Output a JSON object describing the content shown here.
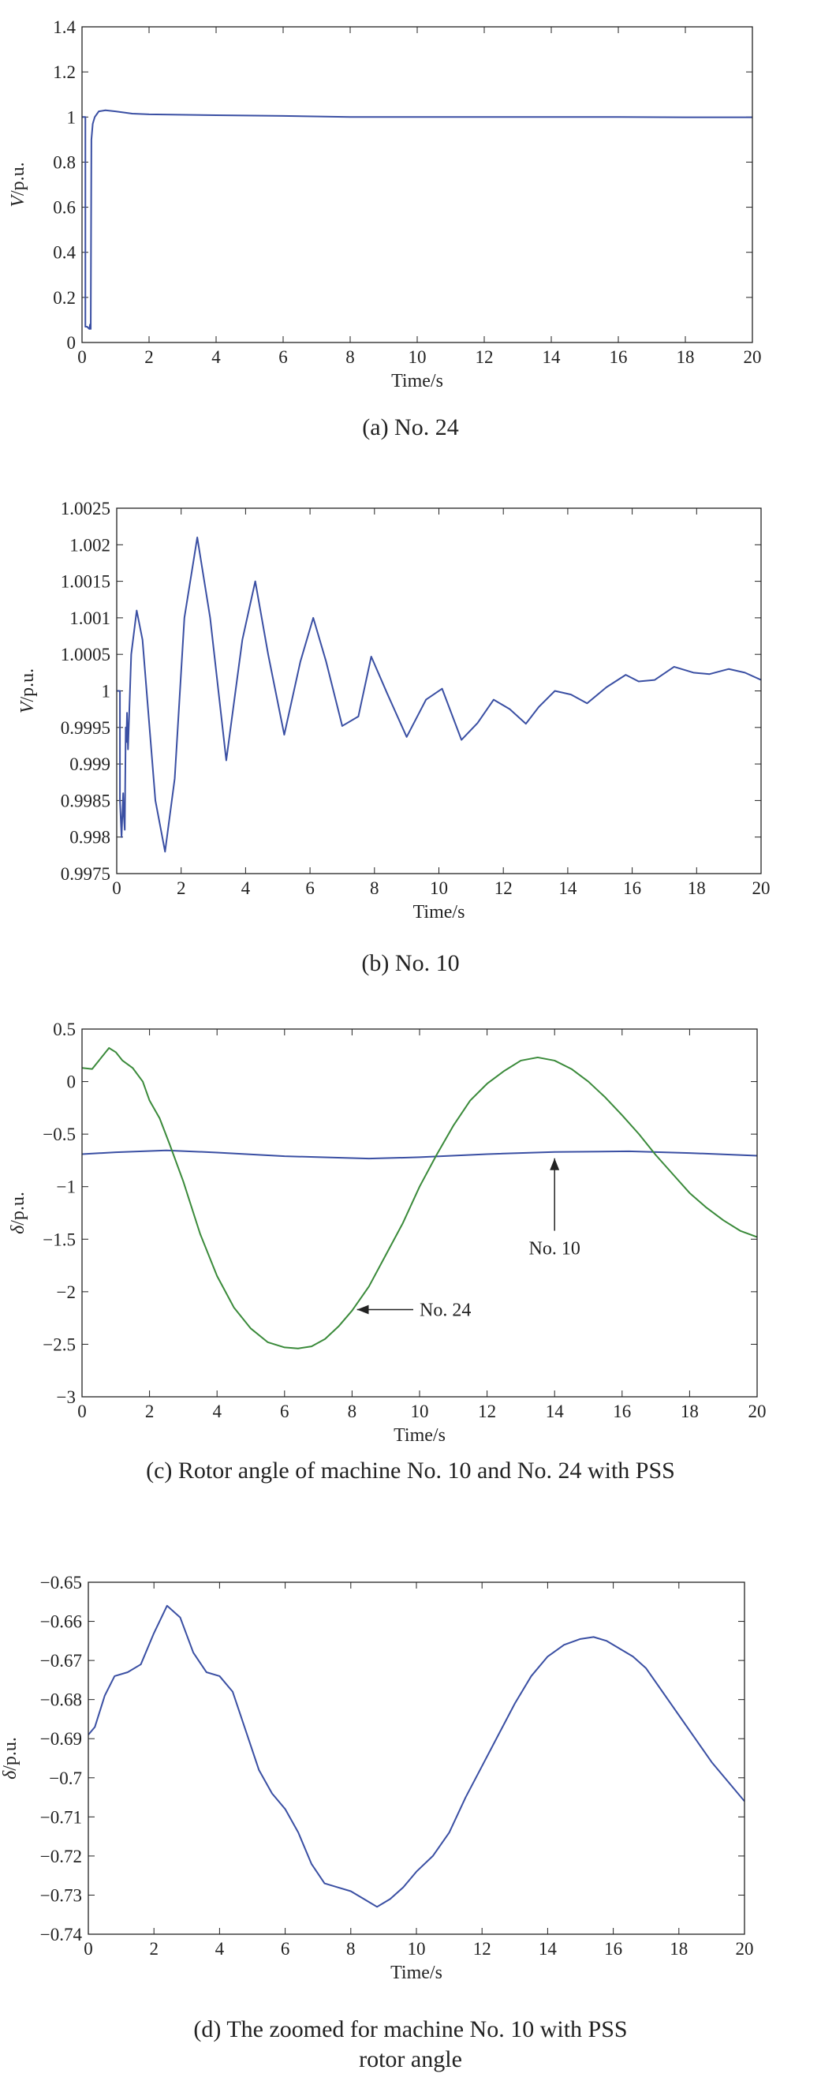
{
  "chart_data": [
    {
      "id": "a",
      "type": "line",
      "caption": "(a) No. 24",
      "xlabel": "Time/s",
      "ylabel_italic": "V",
      "ylabel_rest": "/p.u.",
      "xlim": [
        0,
        20
      ],
      "ylim": [
        0,
        1.4
      ],
      "xticks": [
        0,
        2,
        4,
        6,
        8,
        10,
        12,
        14,
        16,
        18,
        20
      ],
      "xtick_labels": [
        "0",
        "2",
        "4",
        "6",
        "8",
        "10",
        "12",
        "14",
        "16",
        "18",
        "20"
      ],
      "yticks": [
        0,
        0.2,
        0.4,
        0.6,
        0.8,
        1,
        1.2,
        1.4
      ],
      "ytick_labels": [
        "0",
        "0.2",
        "0.4",
        "0.6",
        "0.8",
        "1",
        "1.2",
        "1.4"
      ],
      "series": [
        {
          "name": "No. 24",
          "color": "#3a4fa3",
          "x": [
            0,
            0.1,
            0.1,
            0.15,
            0.22,
            0.24,
            0.26,
            0.27,
            0.28,
            0.32,
            0.38,
            0.5,
            0.7,
            1.0,
            1.5,
            2,
            4,
            6,
            8,
            10,
            12,
            14,
            16,
            18,
            20
          ],
          "y": [
            1.0,
            1.0,
            0.07,
            0.07,
            0.06,
            0.08,
            0.06,
            0.5,
            0.9,
            0.97,
            1.0,
            1.025,
            1.03,
            1.025,
            1.015,
            1.012,
            1.008,
            1.005,
            1.0,
            1.0,
            1.0,
            1.0,
            1.0,
            0.999,
            0.999
          ]
        }
      ]
    },
    {
      "id": "b",
      "type": "line",
      "caption": "(b) No. 10",
      "xlabel": "Time/s",
      "ylabel_italic": "V",
      "ylabel_rest": "/p.u.",
      "xlim": [
        0,
        20
      ],
      "ylim": [
        0.9975,
        1.0025
      ],
      "xticks": [
        0,
        2,
        4,
        6,
        8,
        10,
        12,
        14,
        16,
        18,
        20
      ],
      "xtick_labels": [
        "0",
        "2",
        "4",
        "6",
        "8",
        "10",
        "12",
        "14",
        "16",
        "18",
        "20"
      ],
      "yticks": [
        0.9975,
        0.998,
        0.9985,
        0.999,
        0.9995,
        1,
        1.0005,
        1.001,
        1.0015,
        1.002,
        1.0025
      ],
      "ytick_labels": [
        "0.9975",
        "0.998",
        "0.9985",
        "0.999",
        "0.9995",
        "1",
        "1.0005",
        "1.001",
        "1.0015",
        "1.002",
        "1.0025"
      ],
      "series": [
        {
          "name": "No. 10",
          "color": "#3a4fa3",
          "x": [
            0,
            0.1,
            0.1,
            0.15,
            0.2,
            0.22,
            0.25,
            0.28,
            0.3,
            0.32,
            0.35,
            0.45,
            0.62,
            0.8,
            1.0,
            1.2,
            1.5,
            1.8,
            2.1,
            2.5,
            2.9,
            3.4,
            3.9,
            4.3,
            4.7,
            5.2,
            5.7,
            6.1,
            6.5,
            7.0,
            7.5,
            7.9,
            8.4,
            9.0,
            9.6,
            10.1,
            10.7,
            11.2,
            11.7,
            12.2,
            12.7,
            13.1,
            13.6,
            14.1,
            14.6,
            15.2,
            15.8,
            16.2,
            16.7,
            17.3,
            17.9,
            18.4,
            19.0,
            19.5,
            20
          ],
          "y": [
            1.0,
            1.0,
            0.9985,
            0.998,
            0.9986,
            0.9983,
            0.9981,
            0.9995,
            0.9993,
            0.9997,
            0.9992,
            1.0005,
            1.0011,
            1.0007,
            0.9996,
            0.9985,
            0.9978,
            0.9988,
            1.001,
            1.0021,
            1.001,
            0.99905,
            1.0007,
            1.0015,
            1.0005,
            0.9994,
            1.0004,
            1.001,
            1.0004,
            0.99952,
            0.99965,
            1.00047,
            0.99996,
            0.99937,
            0.99988,
            1.00003,
            0.99933,
            0.99956,
            0.99988,
            0.99975,
            0.99955,
            0.99978,
            1.0,
            0.99995,
            0.99983,
            1.00005,
            1.00022,
            1.00013,
            1.00015,
            1.00033,
            1.00025,
            1.00023,
            1.0003,
            1.00025,
            1.00015
          ]
        }
      ]
    },
    {
      "id": "c",
      "type": "line",
      "caption": "(c) Rotor angle of machine No. 10 and No. 24 with PSS",
      "xlabel": "Time/s",
      "ylabel_italic": "δ",
      "ylabel_rest": "/p.u.",
      "xlim": [
        0,
        20
      ],
      "ylim": [
        -3,
        0.5
      ],
      "xticks": [
        0,
        2,
        4,
        6,
        8,
        10,
        12,
        14,
        16,
        18,
        20
      ],
      "xtick_labels": [
        "0",
        "2",
        "4",
        "6",
        "8",
        "10",
        "12",
        "14",
        "16",
        "18",
        "20"
      ],
      "yticks": [
        -3,
        -2.5,
        -2,
        -1.5,
        -1,
        -0.5,
        0,
        0.5
      ],
      "ytick_labels": [
        "−3",
        "−2.5",
        "−2",
        "−1.5",
        "−1",
        "−0.5",
        "0",
        "0.5"
      ],
      "series": [
        {
          "name": "No. 10",
          "color": "#3a4fa3",
          "x": [
            0,
            1,
            2.5,
            4,
            6,
            8.5,
            10,
            12,
            14,
            16.2,
            18,
            20
          ],
          "y": [
            -0.69,
            -0.673,
            -0.655,
            -0.675,
            -0.71,
            -0.733,
            -0.72,
            -0.69,
            -0.67,
            -0.663,
            -0.68,
            -0.705
          ]
        },
        {
          "name": "No. 24",
          "color": "#3a8a3a",
          "x": [
            0,
            0.3,
            0.5,
            0.8,
            1.0,
            1.2,
            1.5,
            1.8,
            2.0,
            2.3,
            2.6,
            3.0,
            3.5,
            4.0,
            4.5,
            5.0,
            5.5,
            6.0,
            6.4,
            6.8,
            7.2,
            7.6,
            8.0,
            8.5,
            9.0,
            9.5,
            10.0,
            10.5,
            11.0,
            11.5,
            12.0,
            12.5,
            13.0,
            13.5,
            14.0,
            14.5,
            15.0,
            15.5,
            16.0,
            16.5,
            17.0,
            17.5,
            18.0,
            18.5,
            19.0,
            19.5,
            20.0
          ],
          "y": [
            0.13,
            0.12,
            0.2,
            0.32,
            0.28,
            0.2,
            0.13,
            0.0,
            -0.18,
            -0.35,
            -0.6,
            -0.95,
            -1.45,
            -1.85,
            -2.15,
            -2.35,
            -2.48,
            -2.53,
            -2.54,
            -2.52,
            -2.45,
            -2.33,
            -2.18,
            -1.95,
            -1.65,
            -1.35,
            -1.0,
            -0.7,
            -0.42,
            -0.18,
            -0.02,
            0.1,
            0.2,
            0.23,
            0.2,
            0.12,
            0.0,
            -0.15,
            -0.32,
            -0.5,
            -0.7,
            -0.88,
            -1.06,
            -1.2,
            -1.32,
            -1.42,
            -1.48
          ]
        }
      ],
      "annotations": [
        {
          "text": "No. 10",
          "x": 14,
          "y": -0.7,
          "label_x": 14,
          "label_y": -1.6
        },
        {
          "text": "No. 24",
          "x": 8.1,
          "y": -2.17,
          "label_x": 10,
          "label_y": -2.17
        }
      ]
    },
    {
      "id": "d",
      "type": "line",
      "caption_line1": "(d) The zoomed for machine No. 10 with PSS",
      "caption_line2": "rotor angle",
      "xlabel": "Time/s",
      "ylabel_italic": "δ",
      "ylabel_rest": "/p.u.",
      "xlim": [
        0,
        20
      ],
      "ylim": [
        -0.74,
        -0.65
      ],
      "xticks": [
        0,
        2,
        4,
        6,
        8,
        10,
        12,
        14,
        16,
        18,
        20
      ],
      "xtick_labels": [
        "0",
        "2",
        "4",
        "6",
        "8",
        "10",
        "12",
        "14",
        "16",
        "18",
        "20"
      ],
      "yticks": [
        -0.74,
        -0.73,
        -0.72,
        -0.71,
        -0.7,
        -0.69,
        -0.68,
        -0.67,
        -0.66,
        -0.65
      ],
      "ytick_labels": [
        "−0.74",
        "−0.73",
        "−0.72",
        "−0.71",
        "−0.7",
        "−0.69",
        "−0.68",
        "−0.67",
        "−0.66",
        "−0.65"
      ],
      "series": [
        {
          "name": "No. 10",
          "color": "#3a4fa3",
          "x": [
            0,
            0.2,
            0.5,
            0.8,
            1.2,
            1.6,
            2.0,
            2.4,
            2.8,
            3.2,
            3.6,
            4.0,
            4.4,
            4.8,
            5.2,
            5.6,
            6.0,
            6.4,
            6.8,
            7.2,
            7.6,
            8.0,
            8.4,
            8.8,
            9.2,
            9.6,
            10.0,
            10.5,
            11.0,
            11.5,
            12.0,
            12.5,
            13.0,
            13.5,
            14.0,
            14.5,
            15.0,
            15.4,
            15.8,
            16.2,
            16.6,
            17.0,
            17.5,
            18.0,
            18.5,
            19.0,
            19.5,
            20.0
          ],
          "y": [
            -0.689,
            -0.687,
            -0.679,
            -0.674,
            -0.673,
            -0.671,
            -0.663,
            -0.656,
            -0.659,
            -0.668,
            -0.673,
            -0.674,
            -0.678,
            -0.688,
            -0.698,
            -0.704,
            -0.708,
            -0.714,
            -0.722,
            -0.727,
            -0.728,
            -0.729,
            -0.731,
            -0.733,
            -0.731,
            -0.728,
            -0.724,
            -0.72,
            -0.714,
            -0.705,
            -0.697,
            -0.689,
            -0.681,
            -0.674,
            -0.669,
            -0.666,
            -0.6645,
            -0.664,
            -0.665,
            -0.667,
            -0.669,
            -0.672,
            -0.678,
            -0.684,
            -0.69,
            -0.696,
            -0.701,
            -0.706
          ]
        }
      ]
    }
  ]
}
